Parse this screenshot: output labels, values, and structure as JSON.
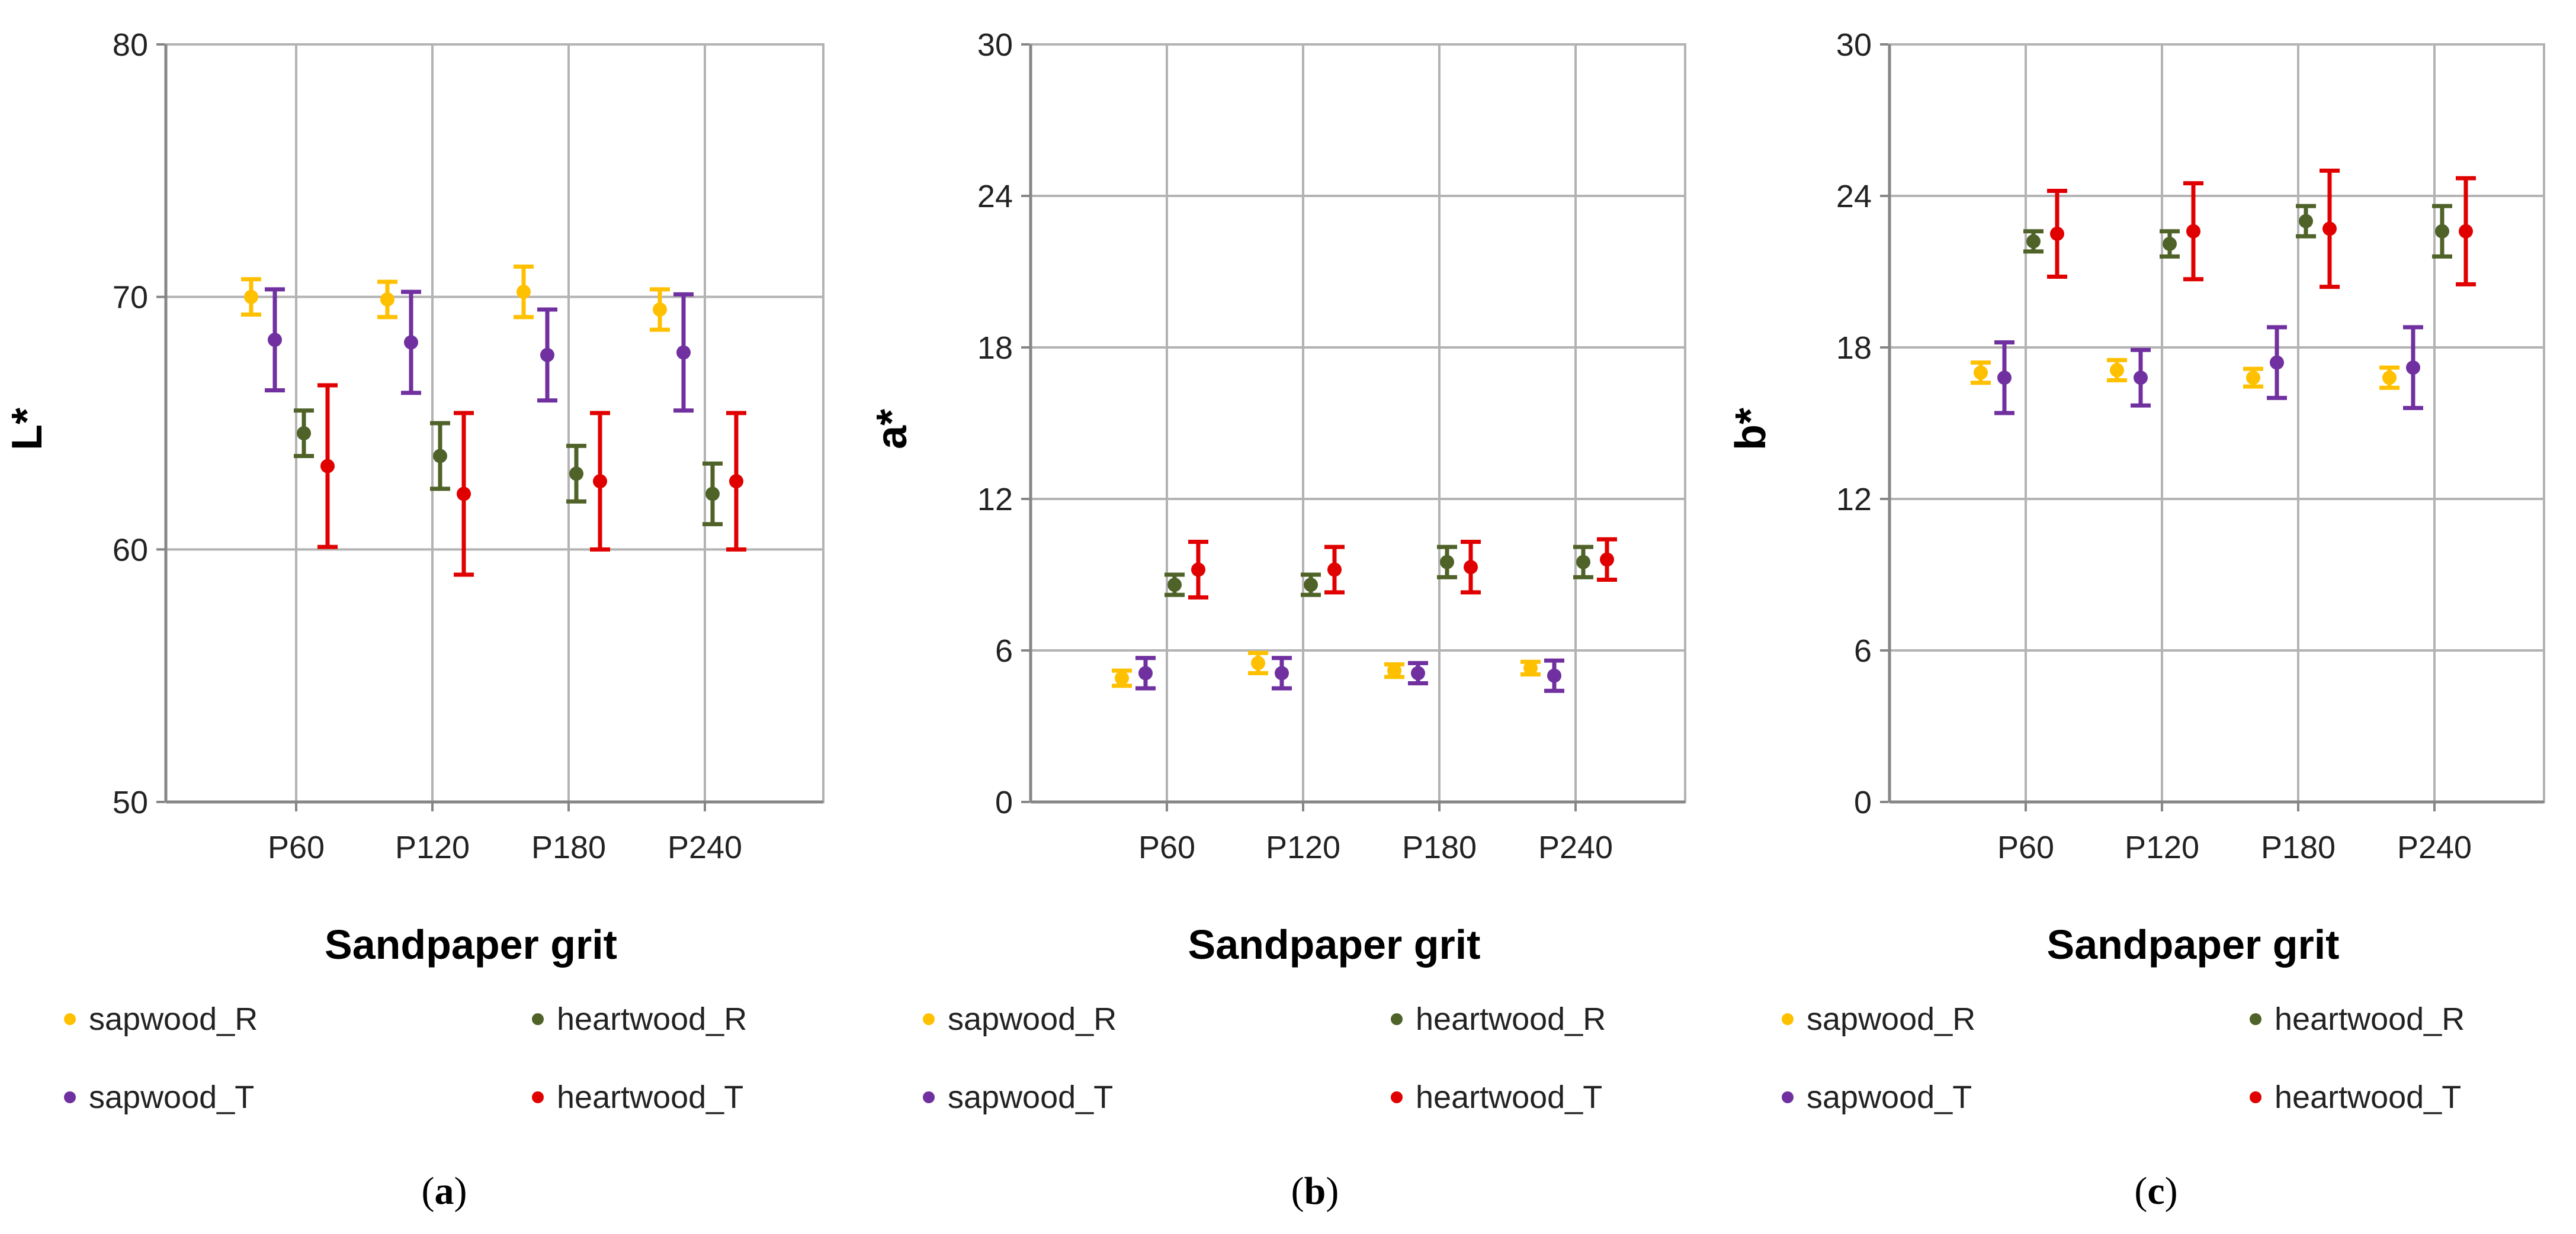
{
  "colors": {
    "sapwood_R": "#FFC000",
    "heartwood_R": "#4F6228",
    "sapwood_T": "#7030A0",
    "heartwood_T": "#E00000",
    "grid": "#B3B3B3",
    "axis": "#868686"
  },
  "chart_data": [
    {
      "type": "scatter",
      "panel_label": "a",
      "ylabel": "L*",
      "xlabel": "Sandpaper grit",
      "ylim": [
        50,
        80
      ],
      "yticks": [
        "50",
        "60",
        "70",
        "80"
      ],
      "categories": [
        "P60",
        "P120",
        "P180",
        "P240"
      ],
      "series": [
        {
          "name": "sapwood_R",
          "values": [
            70.0,
            69.9,
            70.2,
            69.5
          ],
          "errors": [
            0.7,
            0.7,
            1.0,
            0.8
          ]
        },
        {
          "name": "sapwood_T",
          "values": [
            68.3,
            68.2,
            67.7,
            67.8
          ],
          "errors": [
            2.0,
            2.0,
            1.8,
            2.3
          ]
        },
        {
          "name": "heartwood_R",
          "values": [
            64.6,
            63.7,
            63.0,
            62.2
          ],
          "errors": [
            0.9,
            1.3,
            1.1,
            1.2
          ]
        },
        {
          "name": "heartwood_T",
          "values": [
            63.3,
            62.2,
            62.7,
            62.7
          ],
          "errors": [
            3.2,
            3.2,
            2.7,
            2.7
          ]
        }
      ]
    },
    {
      "type": "scatter",
      "panel_label": "b",
      "ylabel": "a*",
      "xlabel": "Sandpaper grit",
      "ylim": [
        0,
        30
      ],
      "yticks": [
        "0",
        "6",
        "12",
        "18",
        "24",
        "30"
      ],
      "categories": [
        "P60",
        "P120",
        "P180",
        "P240"
      ],
      "series": [
        {
          "name": "sapwood_R",
          "values": [
            4.9,
            5.5,
            5.2,
            5.3
          ],
          "errors": [
            0.3,
            0.4,
            0.25,
            0.25
          ]
        },
        {
          "name": "sapwood_T",
          "values": [
            5.1,
            5.1,
            5.1,
            5.0
          ],
          "errors": [
            0.6,
            0.6,
            0.4,
            0.6
          ]
        },
        {
          "name": "heartwood_R",
          "values": [
            8.6,
            8.6,
            9.5,
            9.5
          ],
          "errors": [
            0.4,
            0.4,
            0.6,
            0.6
          ]
        },
        {
          "name": "heartwood_T",
          "values": [
            9.2,
            9.2,
            9.3,
            9.6
          ],
          "errors": [
            1.1,
            0.9,
            1.0,
            0.8
          ]
        }
      ]
    },
    {
      "type": "scatter",
      "panel_label": "c",
      "ylabel": "b*",
      "xlabel": "Sandpaper grit",
      "ylim": [
        0,
        30
      ],
      "yticks": [
        "0",
        "6",
        "12",
        "18",
        "24",
        "30"
      ],
      "categories": [
        "P60",
        "P120",
        "P180",
        "P240"
      ],
      "series": [
        {
          "name": "sapwood_R",
          "values": [
            17.0,
            17.1,
            16.8,
            16.8
          ],
          "errors": [
            0.4,
            0.4,
            0.35,
            0.4
          ]
        },
        {
          "name": "sapwood_T",
          "values": [
            16.8,
            16.8,
            17.4,
            17.2
          ],
          "errors": [
            1.4,
            1.1,
            1.4,
            1.6
          ]
        },
        {
          "name": "heartwood_R",
          "values": [
            22.2,
            22.1,
            23.0,
            22.6
          ],
          "errors": [
            0.4,
            0.5,
            0.6,
            1.0
          ]
        },
        {
          "name": "heartwood_T",
          "values": [
            22.5,
            22.6,
            22.7,
            22.6
          ],
          "errors": [
            1.7,
            1.9,
            2.3,
            2.1
          ]
        }
      ]
    }
  ]
}
